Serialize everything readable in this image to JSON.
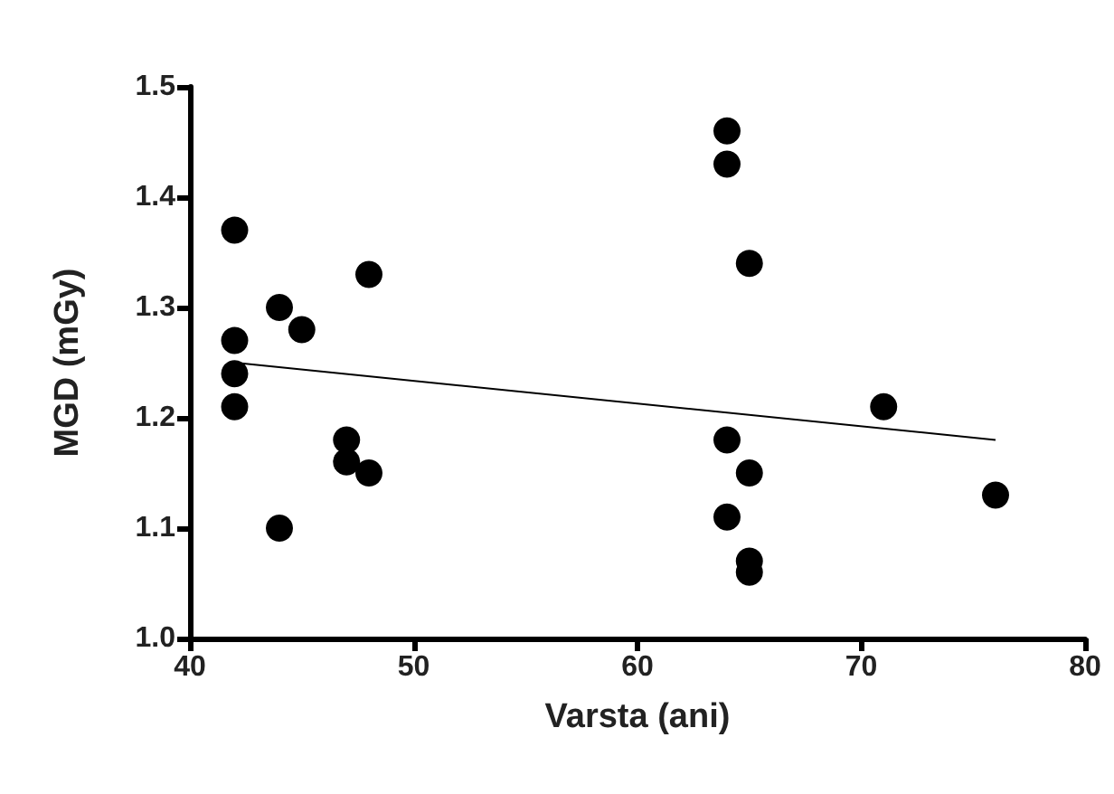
{
  "chart_data": {
    "type": "scatter",
    "xlabel": "Varsta (ani)",
    "ylabel": "MGD (mGy)",
    "xlim": [
      40,
      80
    ],
    "xticks": [
      40,
      50,
      60,
      70,
      80
    ],
    "ylim": [
      1.0,
      1.5
    ],
    "yticks": [
      {
        "value": 1.0,
        "label": "1.0"
      },
      1.1,
      1.2,
      1.3,
      1.4,
      1.5
    ],
    "grid": false,
    "series": [
      {
        "color": "#000000",
        "marker": "circle",
        "x": [
          42,
          42,
          42,
          42,
          44,
          44,
          45,
          47,
          47,
          48,
          48,
          64,
          64,
          65,
          64,
          65,
          64,
          65,
          65,
          71,
          76
        ],
        "values": [
          1.37,
          1.27,
          1.24,
          1.21,
          1.3,
          1.1,
          1.28,
          1.18,
          1.16,
          1.33,
          1.15,
          1.46,
          1.43,
          1.34,
          1.18,
          1.15,
          1.11,
          1.07,
          1.06,
          1.21,
          1.13
        ]
      },
      {
        "type": "line",
        "color": "#000000",
        "marker": "none",
        "x": [
          42,
          76
        ],
        "values": [
          1.25,
          1.18
        ]
      }
    ]
  }
}
